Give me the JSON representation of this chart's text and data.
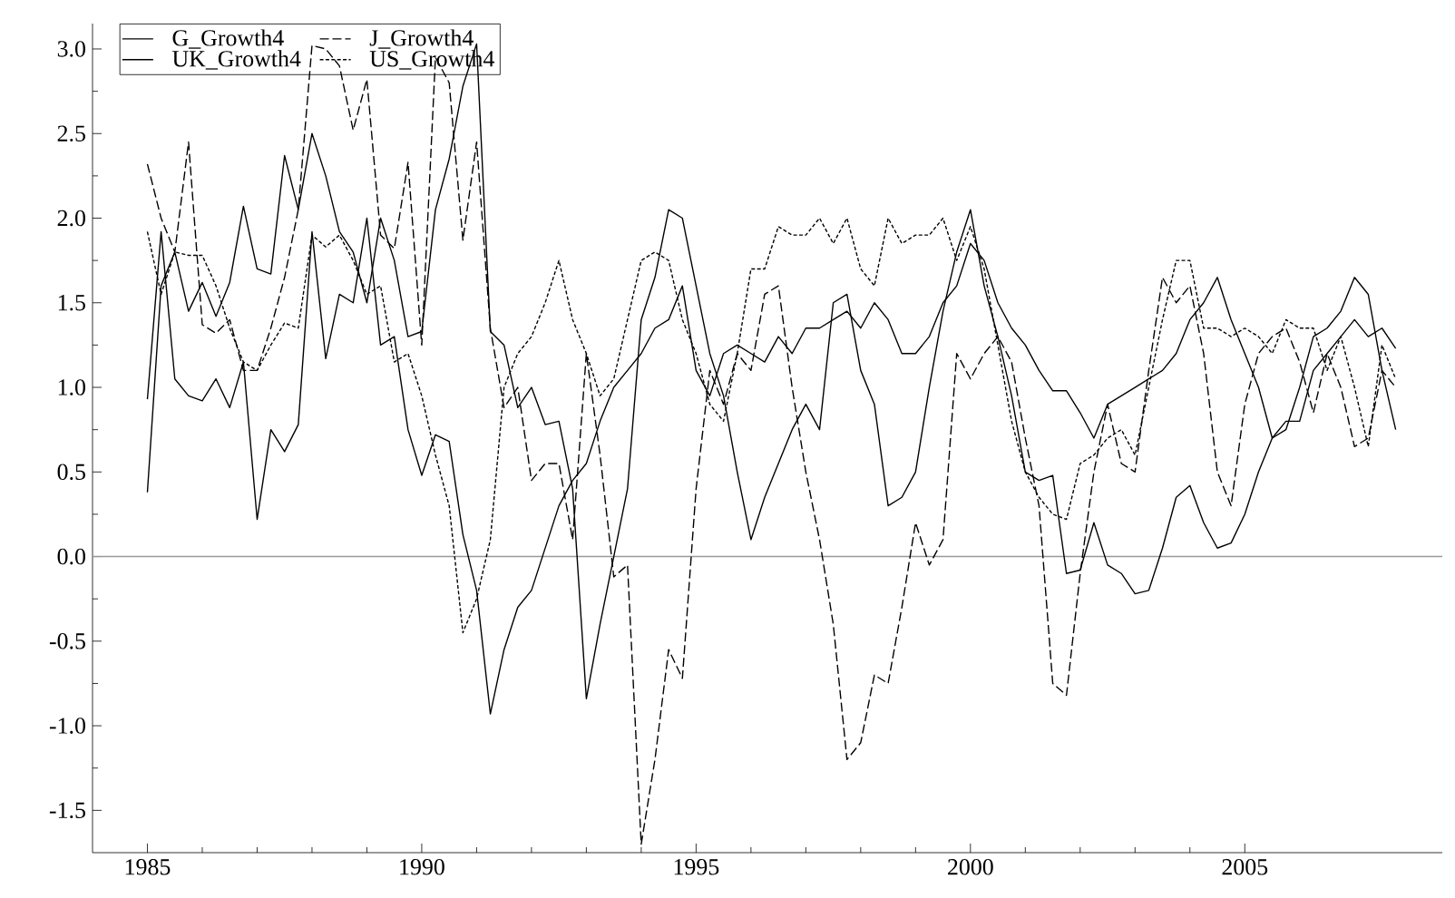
{
  "chart_data": {
    "type": "line",
    "x": [
      1985,
      1985.25,
      1985.5,
      1985.75,
      1986,
      1986.25,
      1986.5,
      1986.75,
      1987,
      1987.25,
      1987.5,
      1987.75,
      1988,
      1988.25,
      1988.5,
      1988.75,
      1989,
      1989.25,
      1989.5,
      1989.75,
      1990,
      1990.25,
      1990.5,
      1990.75,
      1991,
      1991.25,
      1991.5,
      1991.75,
      1992,
      1992.25,
      1992.5,
      1992.75,
      1993,
      1993.25,
      1993.5,
      1993.75,
      1994,
      1994.25,
      1994.5,
      1994.75,
      1995,
      1995.25,
      1995.5,
      1995.75,
      1996,
      1996.25,
      1996.5,
      1996.75,
      1997,
      1997.25,
      1997.5,
      1997.75,
      1998,
      1998.25,
      1998.5,
      1998.75,
      1999,
      1999.25,
      1999.5,
      1999.75,
      2000,
      2000.25,
      2000.5,
      2000.75,
      2001,
      2001.25,
      2001.5,
      2001.75,
      2002,
      2002.25,
      2002.5,
      2002.75,
      2003,
      2003.25,
      2003.5,
      2003.75,
      2004,
      2004.25,
      2004.5,
      2004.75,
      2005,
      2005.25,
      2005.5,
      2005.75,
      2006,
      2006.25,
      2006.5,
      2006.75,
      2007,
      2007.25,
      2007.5,
      2007.75
    ],
    "series": [
      {
        "name": "G_Growth4",
        "color": "#000000",
        "line_style": "solid",
        "values": [
          0.38,
          1.6,
          1.8,
          1.45,
          1.62,
          1.42,
          1.62,
          2.07,
          1.7,
          1.67,
          2.37,
          2.05,
          2.5,
          2.25,
          1.92,
          1.8,
          1.5,
          2.0,
          1.75,
          1.3,
          1.33,
          2.05,
          2.35,
          2.78,
          3.03,
          1.33,
          1.25,
          0.88,
          1.0,
          0.78,
          0.8,
          0.4,
          -0.84,
          -0.4,
          0.0,
          0.4,
          1.4,
          1.65,
          2.05,
          2.0,
          1.6,
          1.2,
          0.95,
          0.5,
          0.1,
          0.35,
          0.55,
          0.75,
          0.9,
          0.75,
          1.5,
          1.55,
          1.1,
          0.9,
          0.3,
          0.35,
          0.5,
          1.0,
          1.45,
          1.8,
          2.05,
          1.6,
          1.3,
          0.95,
          0.5,
          0.45,
          0.48,
          -0.1,
          -0.08,
          0.2,
          -0.05,
          -0.1,
          -0.22,
          -0.2,
          0.05,
          0.35,
          0.42,
          0.2,
          0.05,
          0.08,
          0.25,
          0.5,
          0.7,
          0.75,
          1.0,
          1.3,
          1.35,
          1.45,
          1.65,
          1.55,
          1.1,
          0.75
        ]
      },
      {
        "name": "J_Growth4",
        "color": "#000000",
        "line_style": "dashed",
        "values": [
          2.32,
          2.0,
          1.8,
          2.45,
          1.37,
          1.32,
          1.4,
          1.1,
          1.1,
          1.35,
          1.65,
          2.05,
          3.02,
          3.0,
          2.9,
          2.52,
          2.82,
          1.9,
          1.82,
          2.33,
          1.25,
          2.95,
          2.8,
          1.87,
          2.45,
          1.35,
          0.88,
          1.0,
          0.45,
          0.55,
          0.55,
          0.1,
          1.2,
          0.6,
          -0.12,
          -0.05,
          -1.7,
          -1.2,
          -0.55,
          -0.72,
          0.4,
          1.1,
          0.9,
          1.2,
          1.1,
          1.55,
          1.6,
          1.0,
          0.5,
          0.1,
          -0.4,
          -1.2,
          -1.1,
          -0.7,
          -0.75,
          -0.3,
          0.2,
          -0.05,
          0.1,
          1.2,
          1.05,
          1.2,
          1.3,
          1.15,
          0.7,
          0.3,
          -0.75,
          -0.82,
          -0.1,
          0.5,
          0.9,
          0.55,
          0.5,
          1.1,
          1.65,
          1.5,
          1.6,
          1.2,
          0.5,
          0.3,
          0.9,
          1.2,
          1.3,
          1.35,
          1.15,
          0.85,
          1.2,
          1.0,
          0.65,
          0.7,
          1.1,
          1.0
        ]
      },
      {
        "name": "UK_Growth4",
        "color": "#000000",
        "line_style": "solid",
        "values": [
          0.93,
          1.92,
          1.05,
          0.95,
          0.92,
          1.05,
          0.88,
          1.15,
          0.22,
          0.75,
          0.62,
          0.78,
          1.92,
          1.17,
          1.55,
          1.5,
          2.0,
          1.25,
          1.3,
          0.75,
          0.48,
          0.72,
          0.68,
          0.13,
          -0.2,
          -0.93,
          -0.55,
          -0.3,
          -0.2,
          0.05,
          0.3,
          0.45,
          0.55,
          0.8,
          1.0,
          1.1,
          1.2,
          1.35,
          1.4,
          1.6,
          1.1,
          0.95,
          1.2,
          1.25,
          1.2,
          1.15,
          1.3,
          1.2,
          1.35,
          1.35,
          1.4,
          1.45,
          1.35,
          1.5,
          1.4,
          1.2,
          1.2,
          1.3,
          1.5,
          1.6,
          1.85,
          1.75,
          1.5,
          1.35,
          1.25,
          1.1,
          0.98,
          0.98,
          0.85,
          0.7,
          0.9,
          0.95,
          1.0,
          1.05,
          1.1,
          1.2,
          1.4,
          1.5,
          1.65,
          1.4,
          1.2,
          1.0,
          0.7,
          0.8,
          0.8,
          1.1,
          1.2,
          1.3,
          1.4,
          1.3,
          1.35,
          1.23
        ]
      },
      {
        "name": "US_Growth4",
        "color": "#000000",
        "line_style": "dotted",
        "values": [
          1.92,
          1.55,
          1.8,
          1.78,
          1.78,
          1.6,
          1.35,
          1.15,
          1.1,
          1.25,
          1.38,
          1.35,
          1.9,
          1.83,
          1.9,
          1.75,
          1.55,
          1.6,
          1.15,
          1.2,
          0.95,
          0.6,
          0.3,
          -0.45,
          -0.25,
          0.1,
          1.0,
          1.2,
          1.3,
          1.5,
          1.75,
          1.4,
          1.2,
          0.95,
          1.05,
          1.4,
          1.75,
          1.8,
          1.75,
          1.4,
          1.2,
          0.9,
          0.8,
          1.2,
          1.7,
          1.7,
          1.95,
          1.9,
          1.9,
          2.0,
          1.85,
          2.0,
          1.7,
          1.6,
          2.0,
          1.85,
          1.9,
          1.9,
          2.0,
          1.75,
          1.95,
          1.7,
          1.25,
          0.8,
          0.5,
          0.35,
          0.25,
          0.22,
          0.55,
          0.6,
          0.7,
          0.75,
          0.6,
          1.0,
          1.4,
          1.75,
          1.75,
          1.35,
          1.35,
          1.3,
          1.35,
          1.3,
          1.2,
          1.4,
          1.35,
          1.35,
          1.1,
          1.3,
          1.0,
          0.65,
          1.25,
          1.05
        ]
      }
    ],
    "xlim": [
      1984,
      2008.6
    ],
    "xticks": [
      1985,
      1990,
      1995,
      2000,
      2005
    ],
    "ylim": [
      -1.75,
      3.15
    ],
    "yticks": [
      {
        "value": -1.5,
        "label": "-1.5"
      },
      {
        "value": -1,
        "label": "-1.0"
      },
      {
        "value": -0.5,
        "label": "-0.5"
      },
      {
        "value": 0,
        "label": "0.0"
      },
      {
        "value": 0.5,
        "label": "0.5"
      },
      {
        "value": 1,
        "label": "1.0"
      },
      {
        "value": 1.5,
        "label": "1.5"
      },
      {
        "value": 2,
        "label": "2.0"
      },
      {
        "value": 2.5,
        "label": "2.5"
      },
      {
        "value": 3,
        "label": "3.0"
      }
    ],
    "ref_lines": [
      {
        "axis": "y",
        "value": 0,
        "color": "#999999"
      }
    ],
    "legend": "top left",
    "grid": false,
    "marker": "none"
  }
}
